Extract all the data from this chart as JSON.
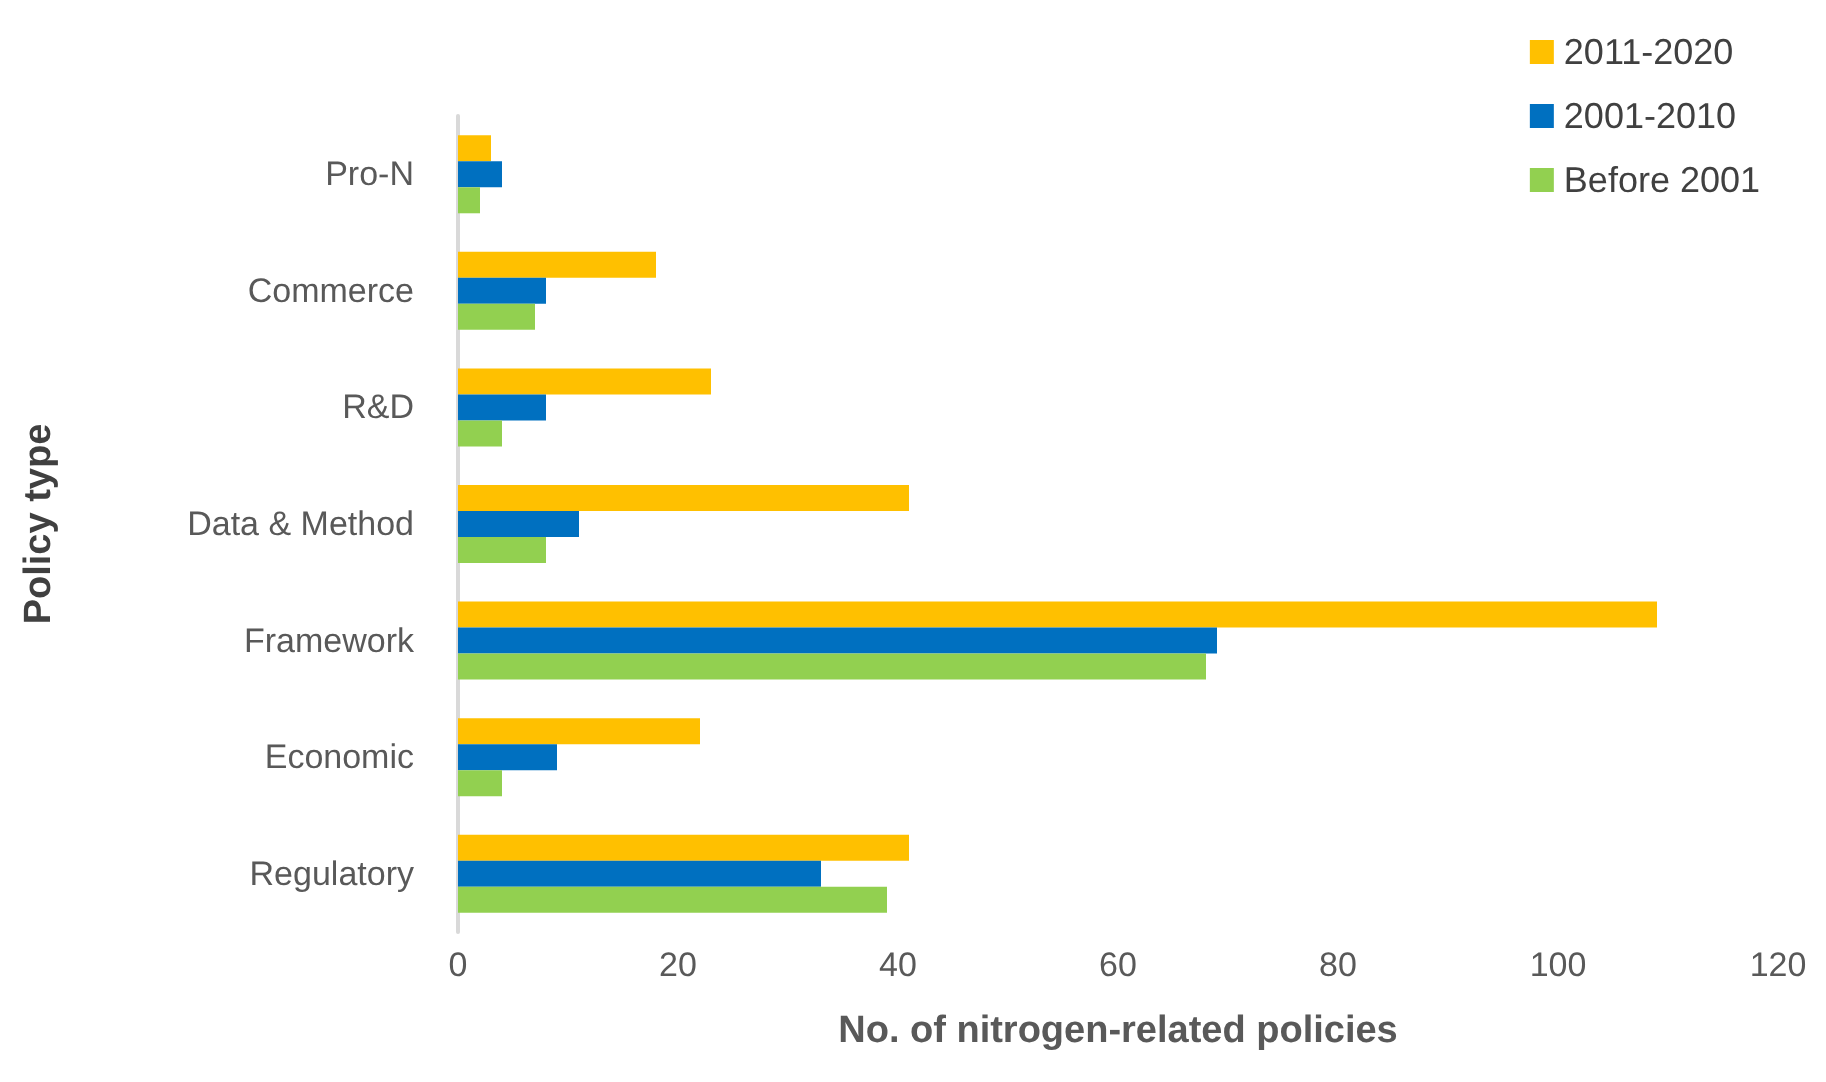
{
  "chart_data": {
    "type": "bar",
    "orientation": "horizontal",
    "xlabel": "No. of nitrogen-related policies",
    "ylabel": "Policy type",
    "categories": [
      "Pro-N",
      "Commerce",
      "R&D",
      "Data & Method",
      "Framework",
      "Economic",
      "Regulatory"
    ],
    "series": [
      {
        "name": "2011-2020",
        "color": "#ffc000",
        "values": [
          3,
          18,
          23,
          41,
          109,
          22,
          41
        ]
      },
      {
        "name": "2001-2010",
        "color": "#0070c0",
        "values": [
          4,
          8,
          8,
          11,
          69,
          9,
          33
        ]
      },
      {
        "name": "Before 2001",
        "color": "#92d050",
        "values": [
          2,
          7,
          4,
          8,
          68,
          4,
          39
        ]
      }
    ],
    "xlim": [
      0,
      120
    ],
    "xticks": [
      0,
      20,
      40,
      60,
      80,
      100,
      120
    ],
    "grid": false,
    "legend": "top right"
  }
}
